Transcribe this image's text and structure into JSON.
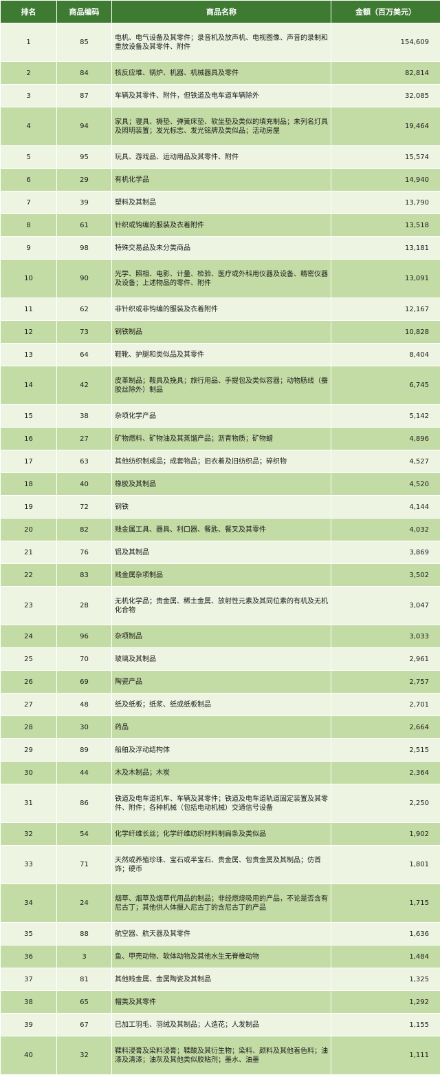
{
  "headers": {
    "rank": "排名",
    "code": "商品编码",
    "name": "商品名称",
    "amount": "金额（百万美元）"
  },
  "rows": [
    {
      "rank": "1",
      "code": "85",
      "name": "电机、电气设备及其零件；录音机及放声机、电视图像、声音的录制和重放设备及其零件、附件",
      "amount": "154,609"
    },
    {
      "rank": "2",
      "code": "84",
      "name": "核反应堆、锅炉、机器、机械器具及零件",
      "amount": "82,814"
    },
    {
      "rank": "3",
      "code": "87",
      "name": "车辆及其零件、附件，但铁道及电车道车辆除外",
      "amount": "32,085"
    },
    {
      "rank": "4",
      "code": "94",
      "name": "家具；寝具、褥垫、弹簧床垫、软坐垫及类似的填充制品；未列名灯具及照明装置；发光标志、发光铭牌及类似品；活动房屋",
      "amount": "19,464"
    },
    {
      "rank": "5",
      "code": "95",
      "name": "玩具、游戏品、运动用品及其零件、附件",
      "amount": "15,574"
    },
    {
      "rank": "6",
      "code": "29",
      "name": "有机化学品",
      "amount": "14,940"
    },
    {
      "rank": "7",
      "code": "39",
      "name": "塑料及其制品",
      "amount": "13,790"
    },
    {
      "rank": "8",
      "code": "61",
      "name": "针织或钩编的服装及衣着附件",
      "amount": "13,518"
    },
    {
      "rank": "9",
      "code": "98",
      "name": "特殊交易品及未分类商品",
      "amount": "13,181"
    },
    {
      "rank": "10",
      "code": "90",
      "name": "光学、照相、电影、计量、检验、医疗或外科用仪器及设备、精密仪器及设备；上述物品的零件、附件",
      "amount": "13,091"
    },
    {
      "rank": "11",
      "code": "62",
      "name": "非针织或非钩编的服装及衣着附件",
      "amount": "12,167"
    },
    {
      "rank": "12",
      "code": "73",
      "name": "钢铁制品",
      "amount": "10,828"
    },
    {
      "rank": "13",
      "code": "64",
      "name": "鞋靴、护腿和类似品及其零件",
      "amount": "8,404"
    },
    {
      "rank": "14",
      "code": "42",
      "name": "皮革制品；鞍具及挽具；旅行用品、手提包及类似容器；动物肠线（蚕胶丝除外）制品",
      "amount": "6,745"
    },
    {
      "rank": "15",
      "code": "38",
      "name": "杂项化学产品",
      "amount": "5,142"
    },
    {
      "rank": "16",
      "code": "27",
      "name": "矿物燃料、矿物油及其蒸馏产品；沥青物质；矿物蜡",
      "amount": "4,896"
    },
    {
      "rank": "17",
      "code": "63",
      "name": "其他纺织制成品；成套物品；旧衣着及旧纺织品；碎织物",
      "amount": "4,527"
    },
    {
      "rank": "18",
      "code": "40",
      "name": "橡胶及其制品",
      "amount": "4,520"
    },
    {
      "rank": "19",
      "code": "72",
      "name": "钢铁",
      "amount": "4,144"
    },
    {
      "rank": "20",
      "code": "82",
      "name": "贱金属工具、器具、利口器、餐匙、餐叉及其零件",
      "amount": "4,032"
    },
    {
      "rank": "21",
      "code": "76",
      "name": "铝及其制品",
      "amount": "3,869"
    },
    {
      "rank": "22",
      "code": "83",
      "name": "贱金属杂项制品",
      "amount": "3,502"
    },
    {
      "rank": "23",
      "code": "28",
      "name": "无机化学品；贵金属、稀土金属、放射性元素及其同位素的有机及无机化合物",
      "amount": "3,047"
    },
    {
      "rank": "24",
      "code": "96",
      "name": "杂项制品",
      "amount": "3,033"
    },
    {
      "rank": "25",
      "code": "70",
      "name": "玻璃及其制品",
      "amount": "2,961"
    },
    {
      "rank": "26",
      "code": "69",
      "name": "陶瓷产品",
      "amount": "2,757"
    },
    {
      "rank": "27",
      "code": "48",
      "name": "纸及纸板；纸浆、纸或纸板制品",
      "amount": "2,701"
    },
    {
      "rank": "28",
      "code": "30",
      "name": "药品",
      "amount": "2,664"
    },
    {
      "rank": "29",
      "code": "89",
      "name": "船舶及浮动结构体",
      "amount": "2,515"
    },
    {
      "rank": "30",
      "code": "44",
      "name": "木及木制品；木炭",
      "amount": "2,364"
    },
    {
      "rank": "31",
      "code": "86",
      "name": "铁道及电车道机车、车辆及其零件；铁道及电车道轨道固定装置及其零件、附件；各种机械（包括电动机械）交通信号设备",
      "amount": "2,250"
    },
    {
      "rank": "32",
      "code": "54",
      "name": "化学纤维长丝；化学纤维纺织材料制扁条及类似品",
      "amount": "1,902"
    },
    {
      "rank": "33",
      "code": "71",
      "name": "天然或养殖珍珠、宝石或半宝石、贵金属、包贵金属及其制品；仿首饰；硬币",
      "amount": "1,801"
    },
    {
      "rank": "34",
      "code": "24",
      "name": "烟草、烟草及烟草代用品的制品；非经燃烧吸用的产品，不论是否含有尼古丁；其他供人体摄入尼古丁的含尼古丁的产品",
      "amount": "1,715"
    },
    {
      "rank": "35",
      "code": "88",
      "name": "航空器、航天器及其零件",
      "amount": "1,636"
    },
    {
      "rank": "36",
      "code": "3",
      "name": "鱼、甲壳动物、软体动物及其他水生无脊椎动物",
      "amount": "1,484"
    },
    {
      "rank": "37",
      "code": "81",
      "name": "其他贱金属、金属陶瓷及其制品",
      "amount": "1,325"
    },
    {
      "rank": "38",
      "code": "65",
      "name": "帽类及其零件",
      "amount": "1,292"
    },
    {
      "rank": "39",
      "code": "67",
      "name": "已加工羽毛、羽绒及其制品；人造花；人发制品",
      "amount": "1,155"
    },
    {
      "rank": "40",
      "code": "32",
      "name": "鞣料浸膏及染料浸膏；鞣酸及其衍生物；染料、颜料及其他着色料；油漆及清漆；油灰及其他类似胶粘剂；墨水、油墨",
      "amount": "1,111"
    }
  ]
}
